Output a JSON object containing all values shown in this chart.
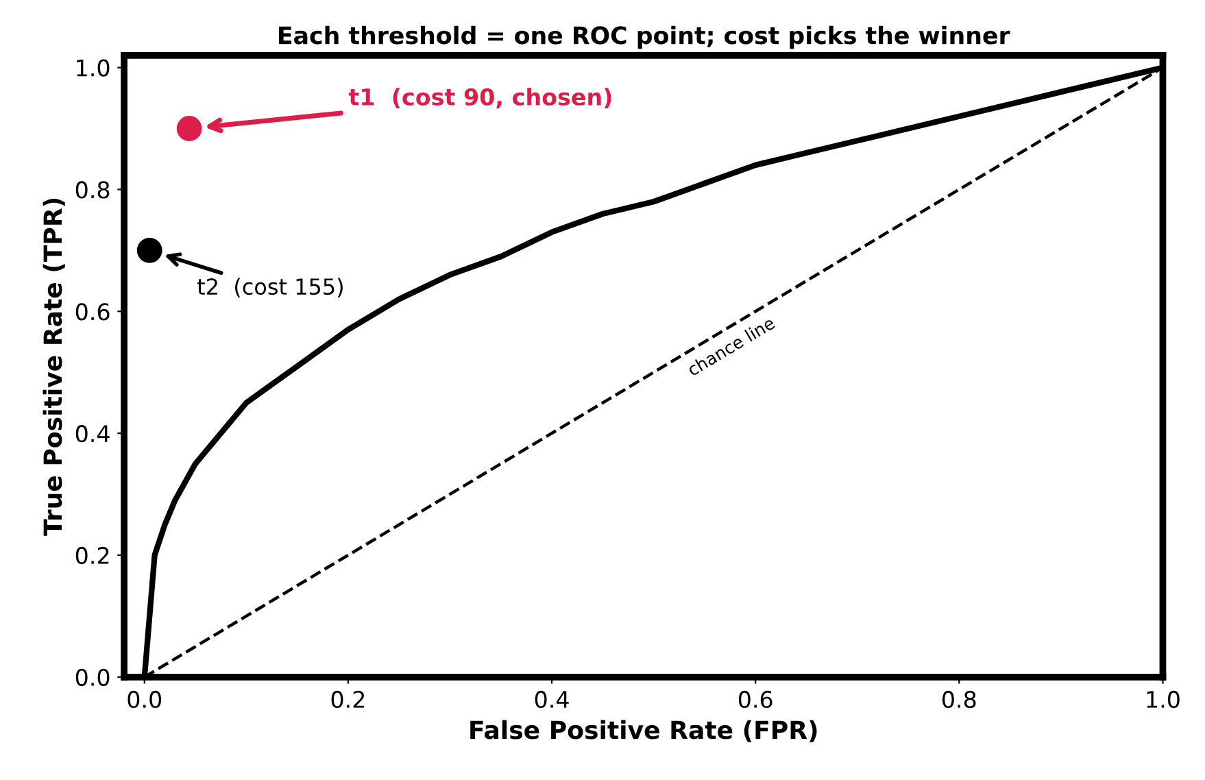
{
  "chart_data": {
    "type": "line",
    "title": "Each threshold = one ROC point; cost picks the winner",
    "xlabel": "False Positive Rate (FPR)",
    "ylabel": "True Positive Rate (TPR)",
    "xlim": [
      -0.02,
      1.0
    ],
    "ylim": [
      0,
      1.02
    ],
    "xticks": [
      {
        "value": 0,
        "label": "0.0"
      },
      {
        "value": 0.2,
        "label": "0.2"
      },
      {
        "value": 0.4,
        "label": "0.4"
      },
      {
        "value": 0.6,
        "label": "0.6"
      },
      {
        "value": 0.8,
        "label": "0.8"
      },
      {
        "value": 1.0,
        "label": "1.0"
      }
    ],
    "yticks": [
      {
        "value": 0,
        "label": "0.0"
      },
      {
        "value": 0.2,
        "label": "0.2"
      },
      {
        "value": 0.4,
        "label": "0.4"
      },
      {
        "value": 0.6,
        "label": "0.6"
      },
      {
        "value": 0.8,
        "label": "0.8"
      },
      {
        "value": 1.0,
        "label": "1.0"
      }
    ],
    "grid": false,
    "legend": false,
    "series": [
      {
        "type": "line",
        "color": "#000000",
        "line_style": "solid",
        "marker": "none",
        "x": [
          0,
          0.01,
          0.02,
          0.03,
          0.04,
          0.05,
          0.075,
          0.1,
          0.125,
          0.15,
          0.2,
          0.25,
          0.3,
          0.35,
          0.4,
          0.45,
          0.5,
          0.55,
          0.6,
          0.65,
          0.7,
          0.75,
          0.8,
          0.85,
          0.9,
          0.95,
          1.0
        ],
        "values": [
          0,
          0.2,
          0.25,
          0.29,
          0.32,
          0.35,
          0.4,
          0.45,
          0.48,
          0.51,
          0.57,
          0.62,
          0.66,
          0.69,
          0.73,
          0.76,
          0.78,
          0.81,
          0.84,
          0.86,
          0.88,
          0.9,
          0.92,
          0.94,
          0.96,
          0.98,
          1.0
        ]
      },
      {
        "type": "line",
        "color": "#000000",
        "line_style": "dashed",
        "marker": "none",
        "x": [
          0,
          1.0
        ],
        "values": [
          0,
          1.0
        ]
      },
      {
        "type": "scatter",
        "color": "#dc1e4a",
        "marker": "circle",
        "x": [
          0.044
        ],
        "values": [
          0.9
        ]
      },
      {
        "type": "scatter",
        "color": "#000000",
        "marker": "circle",
        "x": [
          0.005
        ],
        "values": [
          0.7
        ]
      }
    ],
    "annotations": [
      "t1  (cost 90, chosen)",
      "t2  (cost 155)",
      "chance line"
    ]
  }
}
